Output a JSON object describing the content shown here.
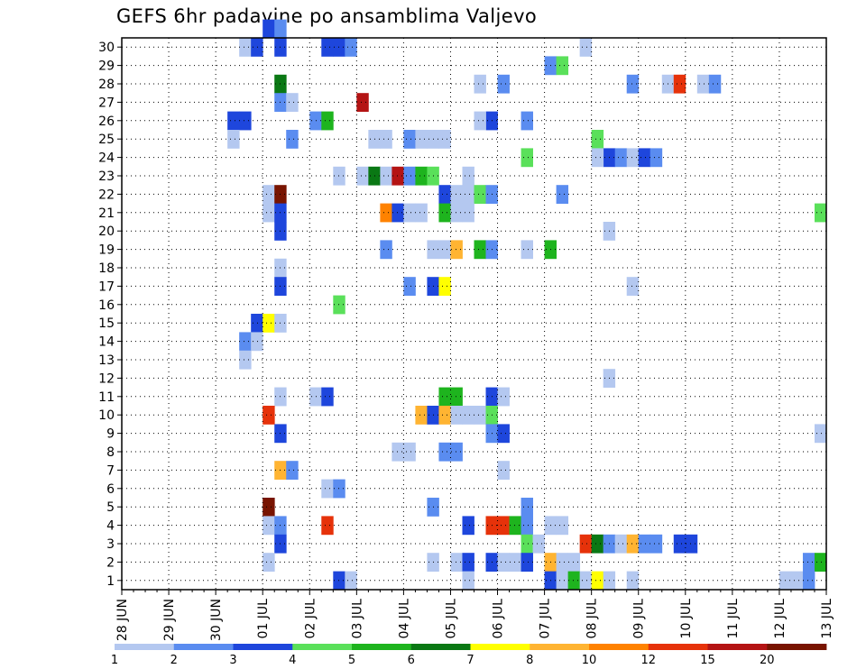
{
  "chart_data": {
    "type": "heatmap",
    "title": "GEFS 6hr padavine po ansamblima Valjevo",
    "xlabel": "",
    "ylabel": "",
    "x_ticks": [
      "28 JUN",
      "29 JUN",
      "30 JUN",
      "01 JUL",
      "02 JUL",
      "03 JUL",
      "04 JUL",
      "05 JUL",
      "06 JUL",
      "07 JUL",
      "08 JUL",
      "09 JUL",
      "10 JUL",
      "11 JUL",
      "12 JUL",
      "13 JUL"
    ],
    "y_ticks": [
      "1",
      "2",
      "3",
      "4",
      "5",
      "6",
      "7",
      "8",
      "9",
      "10",
      "11",
      "12",
      "13",
      "14",
      "15",
      "16",
      "17",
      "18",
      "19",
      "20",
      "21",
      "22",
      "23",
      "24",
      "25",
      "26",
      "27",
      "28",
      "29",
      "30"
    ],
    "xlim_days": [
      0,
      15
    ],
    "ylim": [
      0,
      30
    ],
    "grid": true,
    "legend": {
      "placement": "bottom",
      "labels": [
        "1",
        "2",
        "3",
        "4",
        "5",
        "6",
        "7",
        "8",
        "10",
        "12",
        "15",
        "20"
      ],
      "colors": [
        "#b4c8f0",
        "#5a8cf0",
        "#1e46dc",
        "#5ae05a",
        "#1eb41e",
        "#0a7814",
        "#ffff00",
        "#ffb432",
        "#ff8200",
        "#e6320a",
        "#b41414",
        "#781400"
      ]
    },
    "cells": [
      {
        "m": 30,
        "t": 12,
        "c": 2
      },
      {
        "m": 30,
        "t": 13,
        "c": 1
      },
      {
        "m": 29,
        "t": 10,
        "c": 0
      },
      {
        "m": 29,
        "t": 11,
        "c": 2
      },
      {
        "m": 29,
        "t": 13,
        "c": 2
      },
      {
        "m": 29,
        "t": 17,
        "c": 2
      },
      {
        "m": 29,
        "t": 18,
        "c": 2
      },
      {
        "m": 29,
        "t": 19,
        "c": 1
      },
      {
        "m": 29,
        "t": 39,
        "c": 0
      },
      {
        "m": 28,
        "t": 36,
        "c": 1
      },
      {
        "m": 28,
        "t": 37,
        "c": 3
      },
      {
        "m": 27,
        "t": 13,
        "c": 5
      },
      {
        "m": 27,
        "t": 30,
        "c": 0
      },
      {
        "m": 27,
        "t": 32,
        "c": 1
      },
      {
        "m": 27,
        "t": 43,
        "c": 1
      },
      {
        "m": 27,
        "t": 46,
        "c": 0
      },
      {
        "m": 27,
        "t": 47,
        "c": 9
      },
      {
        "m": 27,
        "t": 49,
        "c": 0
      },
      {
        "m": 27,
        "t": 50,
        "c": 1
      },
      {
        "m": 26,
        "t": 13,
        "c": 1
      },
      {
        "m": 26,
        "t": 14,
        "c": 0
      },
      {
        "m": 26,
        "t": 20,
        "c": 10
      },
      {
        "m": 25,
        "t": 9,
        "c": 2
      },
      {
        "m": 25,
        "t": 10,
        "c": 2
      },
      {
        "m": 25,
        "t": 16,
        "c": 1
      },
      {
        "m": 25,
        "t": 17,
        "c": 4
      },
      {
        "m": 25,
        "t": 31,
        "c": 2
      },
      {
        "m": 25,
        "t": 30,
        "c": 0
      },
      {
        "m": 25,
        "t": 34,
        "c": 1
      },
      {
        "m": 24,
        "t": 9,
        "c": 0
      },
      {
        "m": 24,
        "t": 14,
        "c": 1
      },
      {
        "m": 24,
        "t": 21,
        "c": 0
      },
      {
        "m": 24,
        "t": 22,
        "c": 0
      },
      {
        "m": 24,
        "t": 24,
        "c": 1
      },
      {
        "m": 24,
        "t": 25,
        "c": 0
      },
      {
        "m": 24,
        "t": 26,
        "c": 0
      },
      {
        "m": 24,
        "t": 27,
        "c": 0
      },
      {
        "m": 24,
        "t": 40,
        "c": 3
      },
      {
        "m": 23,
        "t": 34,
        "c": 3
      },
      {
        "m": 23,
        "t": 41,
        "c": 2
      },
      {
        "m": 23,
        "t": 40,
        "c": 0
      },
      {
        "m": 23,
        "t": 42,
        "c": 1
      },
      {
        "m": 23,
        "t": 43,
        "c": 0
      },
      {
        "m": 23,
        "t": 44,
        "c": 2
      },
      {
        "m": 23,
        "t": 45,
        "c": 1
      },
      {
        "m": 22,
        "t": 18,
        "c": 0
      },
      {
        "m": 22,
        "t": 20,
        "c": 0
      },
      {
        "m": 22,
        "t": 21,
        "c": 5
      },
      {
        "m": 22,
        "t": 22,
        "c": 0
      },
      {
        "m": 22,
        "t": 23,
        "c": 10
      },
      {
        "m": 22,
        "t": 24,
        "c": 1
      },
      {
        "m": 22,
        "t": 25,
        "c": 4
      },
      {
        "m": 22,
        "t": 26,
        "c": 3
      },
      {
        "m": 22,
        "t": 29,
        "c": 0
      },
      {
        "m": 21,
        "t": 12,
        "c": 0
      },
      {
        "m": 21,
        "t": 13,
        "c": 11
      },
      {
        "m": 21,
        "t": 27,
        "c": 2
      },
      {
        "m": 21,
        "t": 28,
        "c": 0
      },
      {
        "m": 21,
        "t": 29,
        "c": 0
      },
      {
        "m": 21,
        "t": 30,
        "c": 3
      },
      {
        "m": 21,
        "t": 31,
        "c": 1
      },
      {
        "m": 21,
        "t": 37,
        "c": 1
      },
      {
        "m": 20,
        "t": 12,
        "c": 0
      },
      {
        "m": 20,
        "t": 13,
        "c": 2
      },
      {
        "m": 20,
        "t": 22,
        "c": 8
      },
      {
        "m": 20,
        "t": 23,
        "c": 2
      },
      {
        "m": 20,
        "t": 24,
        "c": 0
      },
      {
        "m": 20,
        "t": 25,
        "c": 0
      },
      {
        "m": 20,
        "t": 27,
        "c": 4
      },
      {
        "m": 20,
        "t": 28,
        "c": 0
      },
      {
        "m": 20,
        "t": 29,
        "c": 0
      },
      {
        "m": 20,
        "t": 59,
        "c": 3
      },
      {
        "m": 19,
        "t": 13,
        "c": 2
      },
      {
        "m": 19,
        "t": 41,
        "c": 0
      },
      {
        "m": 18,
        "t": 22,
        "c": 1
      },
      {
        "m": 18,
        "t": 26,
        "c": 0
      },
      {
        "m": 18,
        "t": 27,
        "c": 0
      },
      {
        "m": 18,
        "t": 28,
        "c": 7
      },
      {
        "m": 18,
        "t": 30,
        "c": 4
      },
      {
        "m": 18,
        "t": 31,
        "c": 1
      },
      {
        "m": 18,
        "t": 34,
        "c": 0
      },
      {
        "m": 18,
        "t": 36,
        "c": 4
      },
      {
        "m": 17,
        "t": 13,
        "c": 0
      },
      {
        "m": 16,
        "t": 13,
        "c": 2
      },
      {
        "m": 16,
        "t": 24,
        "c": 1
      },
      {
        "m": 16,
        "t": 26,
        "c": 2
      },
      {
        "m": 16,
        "t": 27,
        "c": 6
      },
      {
        "m": 16,
        "t": 43,
        "c": 0
      },
      {
        "m": 15,
        "t": 18,
        "c": 3
      },
      {
        "m": 14,
        "t": 11,
        "c": 2
      },
      {
        "m": 14,
        "t": 12,
        "c": 6
      },
      {
        "m": 14,
        "t": 13,
        "c": 0
      },
      {
        "m": 13,
        "t": 10,
        "c": 1
      },
      {
        "m": 13,
        "t": 11,
        "c": 0
      },
      {
        "m": 12,
        "t": 10,
        "c": 0
      },
      {
        "m": 11,
        "t": 41,
        "c": 0
      },
      {
        "m": 10,
        "t": 13,
        "c": 0
      },
      {
        "m": 10,
        "t": 16,
        "c": 0
      },
      {
        "m": 10,
        "t": 17,
        "c": 2
      },
      {
        "m": 10,
        "t": 27,
        "c": 4
      },
      {
        "m": 10,
        "t": 28,
        "c": 4
      },
      {
        "m": 10,
        "t": 31,
        "c": 2
      },
      {
        "m": 10,
        "t": 32,
        "c": 0
      },
      {
        "m": 9,
        "t": 12,
        "c": 9
      },
      {
        "m": 9,
        "t": 25,
        "c": 7
      },
      {
        "m": 9,
        "t": 26,
        "c": 2
      },
      {
        "m": 9,
        "t": 27,
        "c": 7
      },
      {
        "m": 9,
        "t": 28,
        "c": 0
      },
      {
        "m": 9,
        "t": 29,
        "c": 0
      },
      {
        "m": 9,
        "t": 30,
        "c": 0
      },
      {
        "m": 9,
        "t": 31,
        "c": 3
      },
      {
        "m": 8,
        "t": 13,
        "c": 2
      },
      {
        "m": 8,
        "t": 31,
        "c": 1
      },
      {
        "m": 8,
        "t": 32,
        "c": 2
      },
      {
        "m": 8,
        "t": 59,
        "c": 0
      },
      {
        "m": 7,
        "t": 23,
        "c": 0
      },
      {
        "m": 7,
        "t": 24,
        "c": 0
      },
      {
        "m": 7,
        "t": 27,
        "c": 1
      },
      {
        "m": 7,
        "t": 28,
        "c": 1
      },
      {
        "m": 6,
        "t": 13,
        "c": 7
      },
      {
        "m": 6,
        "t": 14,
        "c": 1
      },
      {
        "m": 6,
        "t": 32,
        "c": 0
      },
      {
        "m": 5,
        "t": 17,
        "c": 0
      },
      {
        "m": 5,
        "t": 18,
        "c": 1
      },
      {
        "m": 4,
        "t": 12,
        "c": 11
      },
      {
        "m": 4,
        "t": 26,
        "c": 1
      },
      {
        "m": 4,
        "t": 34,
        "c": 1
      },
      {
        "m": 3,
        "t": 12,
        "c": 0
      },
      {
        "m": 3,
        "t": 13,
        "c": 1
      },
      {
        "m": 3,
        "t": 17,
        "c": 9
      },
      {
        "m": 3,
        "t": 29,
        "c": 2
      },
      {
        "m": 3,
        "t": 31,
        "c": 9
      },
      {
        "m": 3,
        "t": 32,
        "c": 9
      },
      {
        "m": 3,
        "t": 33,
        "c": 4
      },
      {
        "m": 3,
        "t": 34,
        "c": 1
      },
      {
        "m": 3,
        "t": 36,
        "c": 0
      },
      {
        "m": 3,
        "t": 37,
        "c": 0
      },
      {
        "m": 2,
        "t": 13,
        "c": 2
      },
      {
        "m": 2,
        "t": 34,
        "c": 3
      },
      {
        "m": 2,
        "t": 35,
        "c": 0
      },
      {
        "m": 2,
        "t": 39,
        "c": 9
      },
      {
        "m": 2,
        "t": 40,
        "c": 5
      },
      {
        "m": 2,
        "t": 41,
        "c": 1
      },
      {
        "m": 2,
        "t": 42,
        "c": 0
      },
      {
        "m": 2,
        "t": 43,
        "c": 7
      },
      {
        "m": 2,
        "t": 44,
        "c": 1
      },
      {
        "m": 2,
        "t": 45,
        "c": 1
      },
      {
        "m": 2,
        "t": 47,
        "c": 2
      },
      {
        "m": 2,
        "t": 48,
        "c": 2
      },
      {
        "m": 1,
        "t": 12,
        "c": 0
      },
      {
        "m": 1,
        "t": 26,
        "c": 0
      },
      {
        "m": 1,
        "t": 28,
        "c": 0
      },
      {
        "m": 1,
        "t": 29,
        "c": 2
      },
      {
        "m": 1,
        "t": 31,
        "c": 2
      },
      {
        "m": 1,
        "t": 32,
        "c": 0
      },
      {
        "m": 1,
        "t": 33,
        "c": 0
      },
      {
        "m": 1,
        "t": 34,
        "c": 2
      },
      {
        "m": 1,
        "t": 36,
        "c": 7
      },
      {
        "m": 1,
        "t": 37,
        "c": 0
      },
      {
        "m": 1,
        "t": 38,
        "c": 0
      },
      {
        "m": 1,
        "t": 58,
        "c": 1
      },
      {
        "m": 1,
        "t": 59,
        "c": 4
      },
      {
        "m": 0,
        "t": 18,
        "c": 2
      },
      {
        "m": 0,
        "t": 19,
        "c": 0
      },
      {
        "m": 0,
        "t": 29,
        "c": 0
      },
      {
        "m": 0,
        "t": 36,
        "c": 2
      },
      {
        "m": 0,
        "t": 37,
        "c": 0
      },
      {
        "m": 0,
        "t": 38,
        "c": 4
      },
      {
        "m": 0,
        "t": 39,
        "c": 0
      },
      {
        "m": 0,
        "t": 40,
        "c": 6
      },
      {
        "m": 0,
        "t": 41,
        "c": 0
      },
      {
        "m": 0,
        "t": 43,
        "c": 0
      },
      {
        "m": 0,
        "t": 56,
        "c": 0
      },
      {
        "m": 0,
        "t": 57,
        "c": 0
      },
      {
        "m": 0,
        "t": 58,
        "c": 1
      }
    ]
  }
}
